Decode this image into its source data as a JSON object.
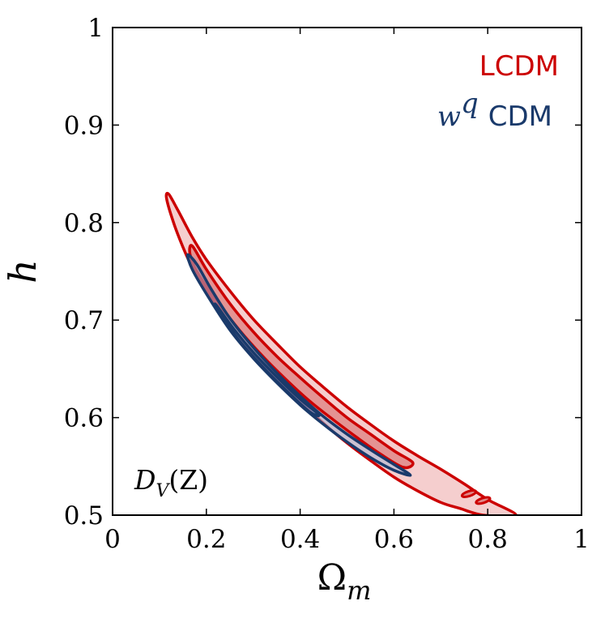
{
  "chart_data": {
    "type": "contour",
    "xlabel_main": "Ω",
    "xlabel_sub": "m",
    "ylabel": "h",
    "xlim": [
      0,
      1
    ],
    "ylim": [
      0.5,
      1
    ],
    "x_ticks": [
      0,
      0.2,
      0.4,
      0.6,
      0.8,
      1
    ],
    "x_tick_labels": [
      "0",
      "0.2",
      "0.4",
      "0.6",
      "0.8",
      "1"
    ],
    "y_ticks": [
      0.5,
      0.6,
      0.7,
      0.8,
      0.9,
      1
    ],
    "y_tick_labels": [
      "0.5",
      "0.6",
      "0.7",
      "0.8",
      "0.9",
      "1"
    ],
    "annotation": {
      "main": "D",
      "sub": "V",
      "rest": "(Z)"
    },
    "series": [
      {
        "name": "LCDM",
        "legend_label": "LCDM",
        "color": "#cc0000",
        "fill": "#f3c6c6",
        "fill_inner": "#e08888",
        "contour_95": [
          [
            0.12,
            0.829
          ],
          [
            0.14,
            0.812
          ],
          [
            0.17,
            0.785
          ],
          [
            0.2,
            0.762
          ],
          [
            0.25,
            0.73
          ],
          [
            0.3,
            0.701
          ],
          [
            0.35,
            0.676
          ],
          [
            0.4,
            0.652
          ],
          [
            0.45,
            0.631
          ],
          [
            0.5,
            0.611
          ],
          [
            0.55,
            0.593
          ],
          [
            0.6,
            0.576
          ],
          [
            0.65,
            0.561
          ],
          [
            0.7,
            0.547
          ],
          [
            0.75,
            0.532
          ],
          [
            0.8,
            0.516
          ],
          [
            0.86,
            0.5
          ],
          [
            0.79,
            0.5
          ],
          [
            0.74,
            0.507
          ],
          [
            0.7,
            0.513
          ],
          [
            0.65,
            0.525
          ],
          [
            0.6,
            0.539
          ],
          [
            0.55,
            0.556
          ],
          [
            0.5,
            0.574
          ],
          [
            0.45,
            0.594
          ],
          [
            0.4,
            0.616
          ],
          [
            0.35,
            0.64
          ],
          [
            0.3,
            0.666
          ],
          [
            0.25,
            0.696
          ],
          [
            0.2,
            0.73
          ],
          [
            0.17,
            0.754
          ],
          [
            0.15,
            0.775
          ],
          [
            0.13,
            0.8
          ],
          [
            0.115,
            0.825
          ]
        ],
        "contour_68": [
          [
            0.17,
            0.776
          ],
          [
            0.2,
            0.752
          ],
          [
            0.25,
            0.717
          ],
          [
            0.3,
            0.688
          ],
          [
            0.35,
            0.663
          ],
          [
            0.4,
            0.641
          ],
          [
            0.45,
            0.62
          ],
          [
            0.5,
            0.6
          ],
          [
            0.55,
            0.583
          ],
          [
            0.6,
            0.566
          ],
          [
            0.64,
            0.554
          ],
          [
            0.62,
            0.549
          ],
          [
            0.57,
            0.563
          ],
          [
            0.52,
            0.58
          ],
          [
            0.47,
            0.598
          ],
          [
            0.42,
            0.617
          ],
          [
            0.37,
            0.639
          ],
          [
            0.32,
            0.663
          ],
          [
            0.27,
            0.69
          ],
          [
            0.22,
            0.721
          ],
          [
            0.18,
            0.75
          ],
          [
            0.165,
            0.768
          ]
        ],
        "islands": [
          {
            "x": 0.76,
            "y": 0.522,
            "label": ""
          },
          {
            "x": 0.79,
            "y": 0.515,
            "label": ""
          }
        ]
      },
      {
        "name": "wqCDM",
        "legend_label_main": "w",
        "legend_label_sup": "q",
        "legend_label_rest": "CDM",
        "color": "#1a3a6b",
        "fill": "#a9b6d6",
        "fill_inner": "#6f84b8",
        "contour_95": [
          [
            0.16,
            0.767
          ],
          [
            0.18,
            0.757
          ],
          [
            0.21,
            0.732
          ],
          [
            0.25,
            0.702
          ],
          [
            0.3,
            0.672
          ],
          [
            0.35,
            0.646
          ],
          [
            0.4,
            0.622
          ],
          [
            0.45,
            0.601
          ],
          [
            0.5,
            0.583
          ],
          [
            0.55,
            0.567
          ],
          [
            0.6,
            0.552
          ],
          [
            0.635,
            0.541
          ],
          [
            0.6,
            0.546
          ],
          [
            0.55,
            0.559
          ],
          [
            0.5,
            0.575
          ],
          [
            0.45,
            0.593
          ],
          [
            0.4,
            0.613
          ],
          [
            0.35,
            0.636
          ],
          [
            0.3,
            0.661
          ],
          [
            0.25,
            0.69
          ],
          [
            0.2,
            0.727
          ],
          [
            0.17,
            0.752
          ]
        ],
        "contour_68": [
          [
            0.22,
            0.716
          ],
          [
            0.26,
            0.69
          ],
          [
            0.3,
            0.667
          ],
          [
            0.35,
            0.642
          ],
          [
            0.4,
            0.619
          ],
          [
            0.44,
            0.603
          ],
          [
            0.42,
            0.606
          ],
          [
            0.37,
            0.628
          ],
          [
            0.32,
            0.652
          ],
          [
            0.27,
            0.679
          ],
          [
            0.23,
            0.706
          ]
        ]
      }
    ]
  }
}
